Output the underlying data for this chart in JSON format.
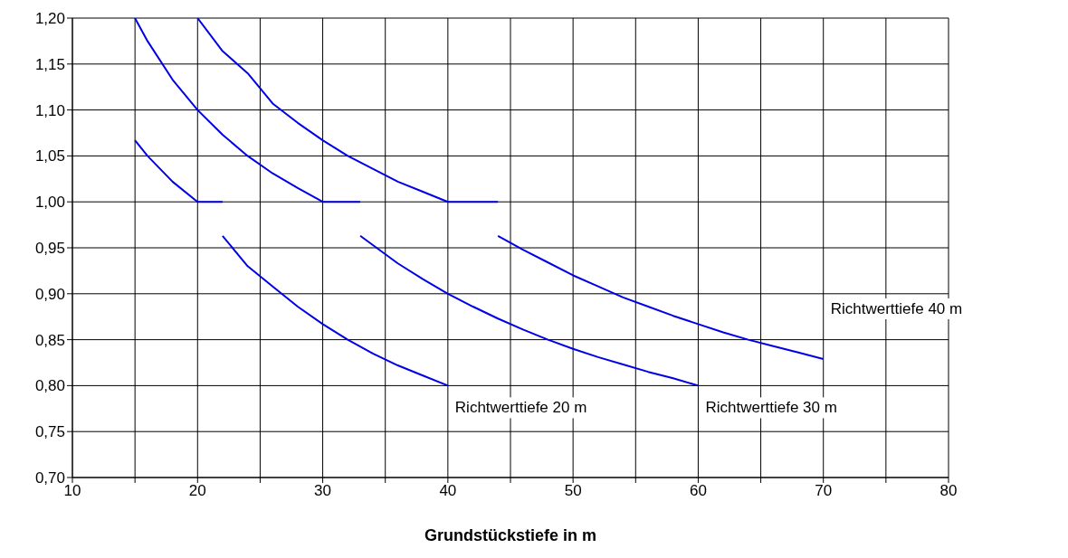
{
  "chart_data": {
    "type": "line",
    "xlabel": "Grundstückstiefe in  m",
    "xlim": [
      10,
      80
    ],
    "xticks": [
      10,
      {
        "value": 15,
        "label": null
      },
      20,
      {
        "value": 25,
        "label": null
      },
      30,
      {
        "value": 35,
        "label": null
      },
      40,
      {
        "value": 45,
        "label": null
      },
      50,
      {
        "value": 55,
        "label": null
      },
      60,
      {
        "value": 65,
        "label": null
      },
      70,
      {
        "value": 75,
        "label": null
      },
      80
    ],
    "ylim": [
      0.7,
      1.2
    ],
    "yticks": [
      {
        "value": 0.7,
        "label": "0,70"
      },
      {
        "value": 0.75,
        "label": "0,75"
      },
      {
        "value": 0.8,
        "label": "0,80"
      },
      {
        "value": 0.85,
        "label": "0,85"
      },
      {
        "value": 0.9,
        "label": "0,90"
      },
      {
        "value": 0.95,
        "label": "0,95"
      },
      {
        "value": 1.0,
        "label": "1,00"
      },
      {
        "value": 1.05,
        "label": "1,05"
      },
      {
        "value": 1.1,
        "label": "1,10"
      },
      {
        "value": 1.15,
        "label": "1,15"
      },
      {
        "value": 1.2,
        "label": "1,20"
      }
    ],
    "grid": true,
    "marker": "none",
    "line_style": "solid",
    "series": [
      {
        "color": "#0000e6",
        "x": [
          15,
          16,
          18,
          20,
          22
        ],
        "values": [
          1.067,
          1.05,
          1.022,
          1.0,
          1.0
        ]
      },
      {
        "color": "#0000e6",
        "x": [
          22,
          24,
          26,
          28,
          30,
          32,
          34,
          36,
          38,
          40
        ],
        "values": [
          0.963,
          0.93,
          0.908,
          0.886,
          0.867,
          0.85,
          0.835,
          0.822,
          0.811,
          0.8
        ]
      },
      {
        "color": "#0000e6",
        "x": [
          15,
          16,
          18,
          20,
          22,
          24,
          26,
          28,
          30,
          33
        ],
        "values": [
          1.2,
          1.175,
          1.133,
          1.1,
          1.073,
          1.05,
          1.031,
          1.015,
          1.0,
          1.0
        ]
      },
      {
        "color": "#0000e6",
        "x": [
          33,
          36,
          38,
          40,
          42,
          44,
          46,
          48,
          50,
          52,
          54,
          56,
          58,
          60
        ],
        "values": [
          0.963,
          0.933,
          0.916,
          0.9,
          0.886,
          0.873,
          0.861,
          0.85,
          0.84,
          0.831,
          0.823,
          0.815,
          0.808,
          0.8
        ]
      },
      {
        "color": "#0000e6",
        "x": [
          20,
          22,
          24,
          26,
          28,
          30,
          32,
          34,
          36,
          38,
          40,
          44
        ],
        "values": [
          1.2,
          1.164,
          1.14,
          1.107,
          1.086,
          1.067,
          1.05,
          1.036,
          1.022,
          1.011,
          1.0,
          1.0
        ]
      },
      {
        "color": "#0000e6",
        "x": [
          44,
          46,
          48,
          50,
          52,
          54,
          56,
          58,
          60,
          62,
          64,
          66,
          68,
          70
        ],
        "values": [
          0.963,
          0.948,
          0.934,
          0.92,
          0.908,
          0.896,
          0.886,
          0.876,
          0.867,
          0.858,
          0.85,
          0.843,
          0.836,
          0.829
        ]
      }
    ],
    "annotations": [
      {
        "text": "Richtwerttiefe 20 m",
        "x": 40,
        "y": 0.8
      },
      {
        "text": "Richtwerttiefe 30 m",
        "x": 60,
        "y": 0.8
      },
      {
        "text": "Richtwerttiefe 40 m",
        "x": 70,
        "y": 0.829
      }
    ]
  }
}
